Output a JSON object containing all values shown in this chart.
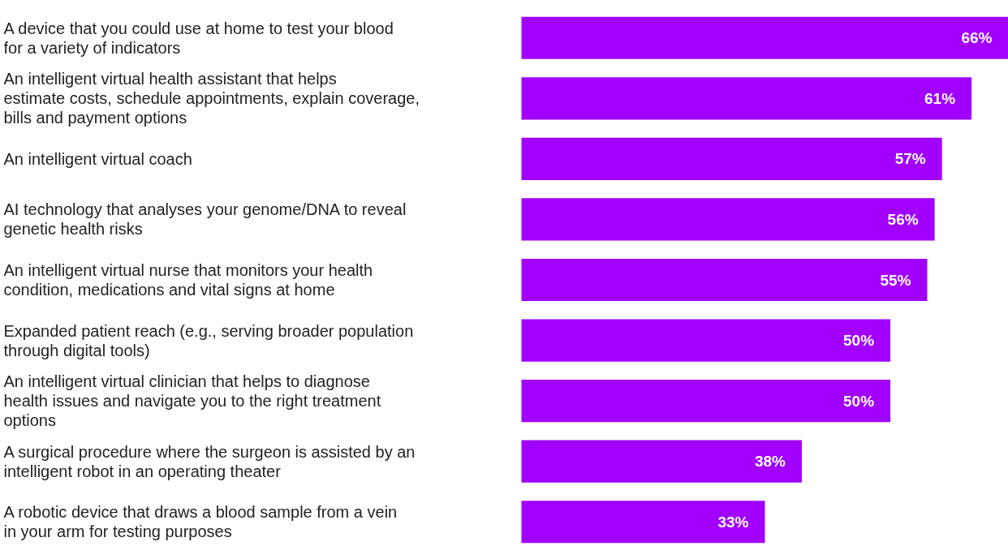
{
  "chart_data": {
    "type": "bar",
    "orientation": "horizontal",
    "value_labels": [
      "66%",
      "61%",
      "57%",
      "56%",
      "55%",
      "50%",
      "50%",
      "38%",
      "33%"
    ],
    "categories": [
      "A device that you could use at home to test your blood for a variety of indicators",
      "An intelligent virtual health assistant that helps estimate costs, schedule appointments, explain coverage, bills and payment options",
      "An intelligent virtual coach",
      "AI technology that analyses your genome/DNA to reveal genetic health risks",
      "An intelligent virtual nurse that monitors your health condition, medications and vital signs at home",
      "Expanded patient reach (e.g., serving broader population through digital tools)",
      "An intelligent virtual clinician that helps to diagnose health issues and navigate you to the right treatment options",
      "A surgical procedure where the surgeon is assisted by an intelligent robot in an operating theater",
      "A robotic device that draws a blood sample from a vein in your arm for testing purposes"
    ],
    "values": [
      66,
      61,
      57,
      56,
      55,
      50,
      50,
      38,
      33
    ],
    "color": "#a100ff"
  }
}
